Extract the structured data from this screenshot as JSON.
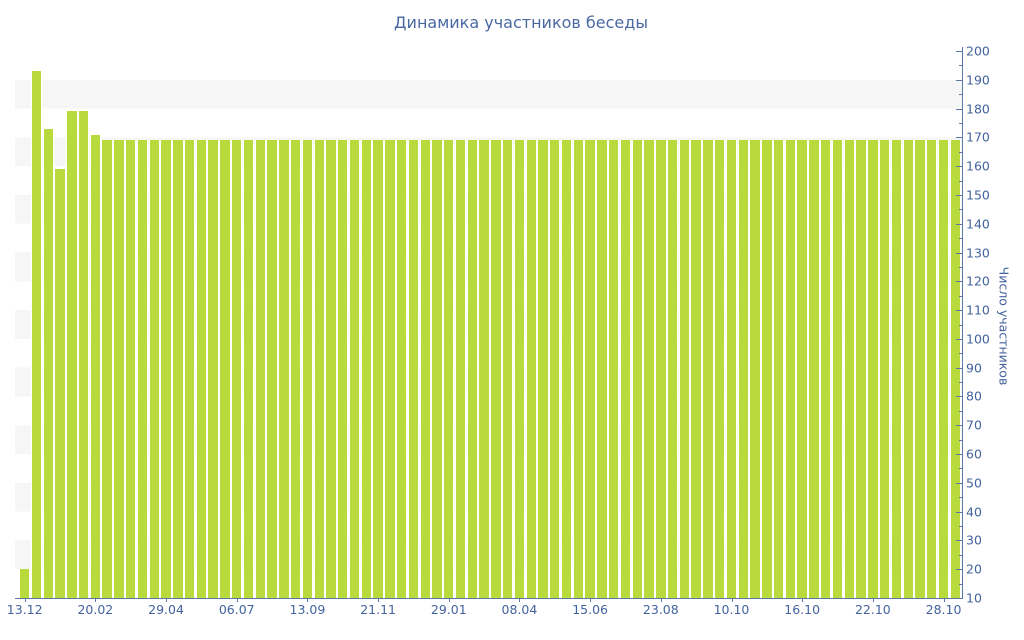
{
  "chart_data": {
    "type": "bar",
    "title": "Динамика участников беседы",
    "ylabel": "Число участников",
    "xlabel": "",
    "ylim": [
      10,
      200
    ],
    "y_tick_labels": [
      200,
      190,
      180,
      170,
      160,
      150,
      140,
      130,
      120,
      110,
      100,
      90,
      80,
      70,
      60,
      50,
      40,
      30,
      20,
      10
    ],
    "y_minor_tick_step": 5,
    "x_tick_labels": [
      "13.12",
      "20.02",
      "29.04",
      "06.07",
      "13.09",
      "21.11",
      "29.01",
      "08.04",
      "15.06",
      "23.08",
      "10.10",
      "16.10",
      "22.10",
      "28.10"
    ],
    "x_label_every_n_bars": 6,
    "legend": null,
    "grid": "alternating horizontal bands",
    "bar_count": 80,
    "values": [
      20,
      193,
      173,
      159,
      179,
      179,
      171,
      169,
      169,
      169,
      169,
      169,
      169,
      169,
      169,
      169,
      169,
      169,
      169,
      169,
      169,
      169,
      169,
      169,
      169,
      169,
      169,
      169,
      169,
      169,
      169,
      169,
      169,
      169,
      169,
      169,
      169,
      169,
      169,
      169,
      169,
      169,
      169,
      169,
      169,
      169,
      169,
      169,
      169,
      169,
      169,
      169,
      169,
      169,
      169,
      169,
      169,
      169,
      169,
      169,
      169,
      169,
      169,
      169,
      169,
      169,
      169,
      169,
      169,
      169,
      169,
      169,
      169,
      169,
      169,
      169,
      169,
      169,
      169,
      169
    ]
  },
  "colors": {
    "bar": "#b9da3c",
    "band": "#f6f6f6",
    "axis": "#5e76a8",
    "text": "#44639e",
    "title_text": "#4a69a3"
  }
}
